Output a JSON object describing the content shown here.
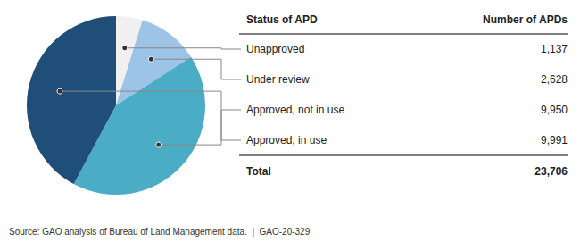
{
  "chart_data": {
    "type": "pie",
    "categories": [
      "Unapproved",
      "Under review",
      "Approved, not in use",
      "Approved, in use"
    ],
    "values": [
      1137,
      2628,
      9950,
      9991
    ],
    "value_labels": [
      "1,137",
      "2,628",
      "9,950",
      "9,991"
    ],
    "colors": [
      "#f0f0f0",
      "#9dc3e6",
      "#4bacc6",
      "#1f4e79"
    ],
    "column_titles": [
      "Status of APD",
      "Number of APDs"
    ],
    "total": {
      "label": "Total",
      "value": 23706,
      "value_label": "23,706"
    },
    "note": "Source: GAO analysis of Bureau of Land Management data.  |  GAO-20-329",
    "data_labels": false,
    "legend": false
  }
}
